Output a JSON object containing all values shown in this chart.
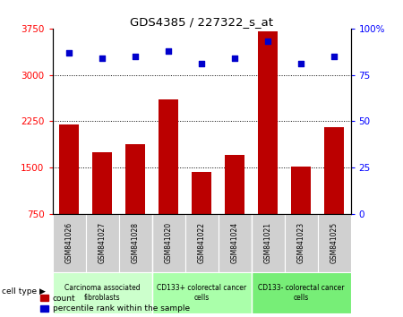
{
  "title": "GDS4385 / 227322_s_at",
  "samples": [
    "GSM841026",
    "GSM841027",
    "GSM841028",
    "GSM841020",
    "GSM841022",
    "GSM841024",
    "GSM841021",
    "GSM841023",
    "GSM841025"
  ],
  "counts": [
    2200,
    1750,
    1875,
    2600,
    1430,
    1700,
    3700,
    1510,
    2150
  ],
  "percentiles": [
    87,
    84,
    85,
    88,
    81,
    84,
    93,
    81,
    85
  ],
  "ylim_left": [
    750,
    3750
  ],
  "ylim_right": [
    0,
    100
  ],
  "yticks_left": [
    750,
    1500,
    2250,
    3000,
    3750
  ],
  "yticks_right": [
    0,
    25,
    50,
    75,
    100
  ],
  "ytick_labels_right": [
    "0",
    "25",
    "50",
    "75",
    "100%"
  ],
  "bar_color": "#bb0000",
  "dot_color": "#0000cc",
  "cell_types": [
    {
      "label": "Carcinoma associated\nfibroblasts",
      "start": 0,
      "end": 3,
      "color": "#ccffcc"
    },
    {
      "label": "CD133+ colorectal cancer\ncells",
      "start": 3,
      "end": 6,
      "color": "#aaffaa"
    },
    {
      "label": "CD133- colorectal cancer\ncells",
      "start": 6,
      "end": 9,
      "color": "#77ee77"
    }
  ],
  "legend_count_label": "count",
  "legend_percentile_label": "percentile rank within the sample",
  "cell_type_label": "cell type"
}
